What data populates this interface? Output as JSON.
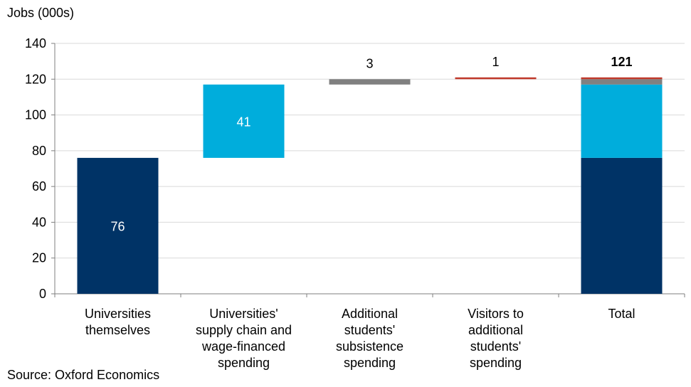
{
  "chart_data": {
    "type": "bar",
    "subtype": "waterfall",
    "ylabel": "Jobs (000s)",
    "ylim": [
      0,
      140
    ],
    "yticks": [
      0,
      20,
      40,
      60,
      80,
      100,
      120,
      140
    ],
    "grid": true,
    "legend": "none",
    "categories": [
      [
        "Universities",
        "themselves"
      ],
      [
        "Universities'",
        "supply chain and",
        "wage-financed",
        "spending"
      ],
      [
        "Additional",
        "students'",
        "subsistence",
        "spending"
      ],
      [
        "Visitors to",
        "additional",
        "students'",
        "spending"
      ],
      [
        "Total"
      ]
    ],
    "steps": [
      {
        "base": 0,
        "value": 76,
        "label": "76",
        "color": "#003366"
      },
      {
        "base": 76,
        "value": 41,
        "label": "41",
        "color": "#00ADDC"
      },
      {
        "base": 117,
        "value": 3,
        "label": "3",
        "color": "#808080"
      },
      {
        "base": 120,
        "value": 1,
        "label": "1",
        "color": "#C0392B"
      }
    ],
    "total": {
      "value": 121,
      "label": "121"
    },
    "label_colors": {
      "inside": "#ffffff",
      "outside": "#000000"
    },
    "grid_color": "#d9d9d9",
    "axis_color": "#7f7f7f"
  },
  "source": "Source: Oxford Economics"
}
